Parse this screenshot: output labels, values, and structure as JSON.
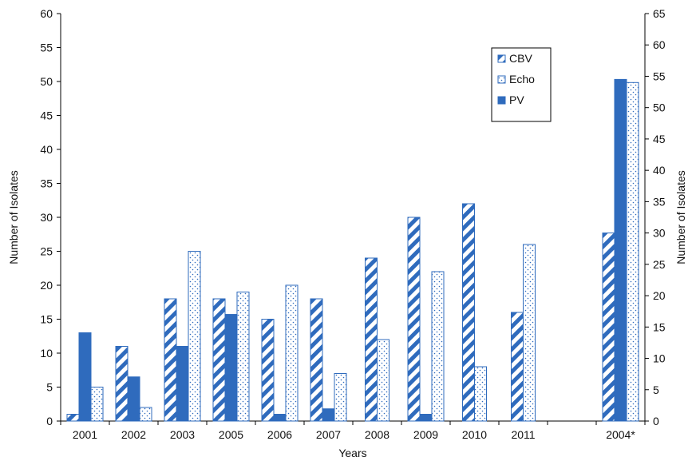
{
  "chart_data": {
    "type": "bar",
    "xlabel": "Years",
    "ylabel": "Number of Isolates",
    "ylabel_right": "Number of Isolates",
    "ylim": [
      0,
      60
    ],
    "ylim_right": [
      0,
      65
    ],
    "yticks": [
      "0",
      "5",
      "10",
      "15",
      "20",
      "25",
      "30",
      "35",
      "40",
      "45",
      "50",
      "55",
      "60"
    ],
    "yticks_right": [
      "0",
      "5",
      "10",
      "15",
      "20",
      "25",
      "30",
      "35",
      "40",
      "45",
      "50",
      "55",
      "60",
      "65"
    ],
    "grid": false,
    "legend_position": "top-right",
    "categories": [
      "2001",
      "2002",
      "2003",
      "2005",
      "2006",
      "2007",
      "2008",
      "2009",
      "2010",
      "2011",
      "",
      "2004*"
    ],
    "series": [
      {
        "name": "CBV",
        "pattern": "diagonal-stripes",
        "color": "#2f6bbd",
        "values": [
          1,
          11,
          18,
          18,
          15,
          18,
          24,
          30,
          32,
          16,
          null,
          30
        ]
      },
      {
        "name": "Echo",
        "pattern": "dots",
        "color": "#2f6bbd",
        "values": [
          5,
          2,
          25,
          19,
          20,
          7,
          12,
          22,
          8,
          26,
          null,
          54
        ]
      },
      {
        "name": "PV",
        "pattern": "solid",
        "color": "#2f6bbd",
        "values": [
          13,
          6.5,
          11,
          15.7,
          1,
          1.8,
          0,
          1,
          0,
          0,
          null,
          54.5
        ]
      }
    ],
    "bar_order_per_group": [
      [
        "CBV",
        "PV",
        "Echo"
      ],
      [
        "CBV",
        "PV",
        "Echo"
      ],
      [
        "CBV",
        "PV",
        "Echo"
      ],
      [
        "CBV",
        "PV",
        "Echo"
      ],
      [
        "CBV",
        "PV",
        "Echo"
      ],
      [
        "CBV",
        "PV",
        "Echo"
      ],
      [
        "CBV",
        "Echo"
      ],
      [
        "CBV",
        "PV",
        "Echo"
      ],
      [
        "CBV",
        "Echo"
      ],
      [
        "CBV",
        "Echo"
      ],
      [],
      [
        "CBV",
        "PV",
        "Echo"
      ]
    ]
  }
}
